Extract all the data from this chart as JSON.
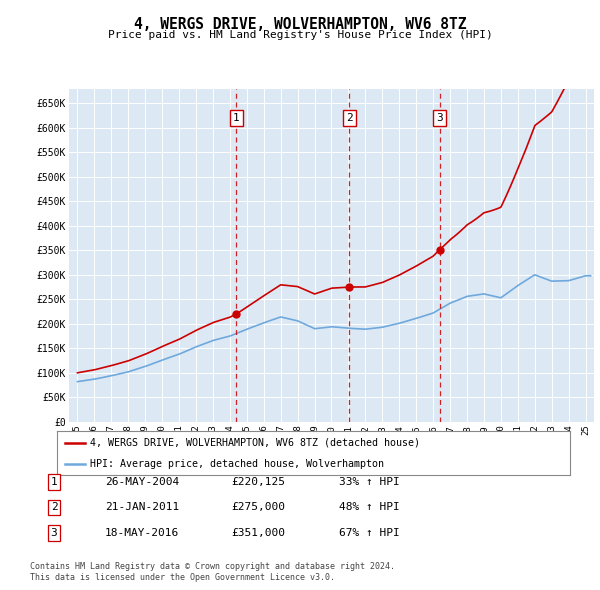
{
  "title": "4, WERGS DRIVE, WOLVERHAMPTON, WV6 8TZ",
  "subtitle": "Price paid vs. HM Land Registry's House Price Index (HPI)",
  "plot_bg_color": "#dce9f5",
  "grid_color": "#ffffff",
  "hpi_color": "#6fa8dc",
  "price_color": "#cc0000",
  "transactions": [
    {
      "num": 1,
      "date": "26-MAY-2004",
      "price": 220125,
      "x": 2004.39,
      "hpi_pct": "33% ↑ HPI"
    },
    {
      "num": 2,
      "date": "21-JAN-2011",
      "price": 275000,
      "x": 2011.05,
      "hpi_pct": "48% ↑ HPI"
    },
    {
      "num": 3,
      "date": "18-MAY-2016",
      "price": 351000,
      "x": 2016.38,
      "hpi_pct": "67% ↑ HPI"
    }
  ],
  "legend_label_price": "4, WERGS DRIVE, WOLVERHAMPTON, WV6 8TZ (detached house)",
  "legend_label_hpi": "HPI: Average price, detached house, Wolverhampton",
  "footnote1": "Contains HM Land Registry data © Crown copyright and database right 2024.",
  "footnote2": "This data is licensed under the Open Government Licence v3.0.",
  "xlim": [
    1994.5,
    2025.5
  ],
  "ylim": [
    0,
    680000
  ],
  "yticks": [
    0,
    50000,
    100000,
    150000,
    200000,
    250000,
    300000,
    350000,
    400000,
    450000,
    500000,
    550000,
    600000,
    650000
  ],
  "ytick_labels": [
    "£0",
    "£50K",
    "£100K",
    "£150K",
    "£200K",
    "£250K",
    "£300K",
    "£350K",
    "£400K",
    "£450K",
    "£500K",
    "£550K",
    "£600K",
    "£650K"
  ],
  "xtick_years": [
    1995,
    1996,
    1997,
    1998,
    1999,
    2000,
    2001,
    2002,
    2003,
    2004,
    2005,
    2006,
    2007,
    2008,
    2009,
    2010,
    2011,
    2012,
    2013,
    2014,
    2015,
    2016,
    2017,
    2018,
    2019,
    2020,
    2021,
    2022,
    2023,
    2024,
    2025
  ],
  "hpi_years": [
    1995,
    1996,
    1997,
    1998,
    1999,
    2000,
    2001,
    2002,
    2003,
    2004,
    2005,
    2006,
    2007,
    2008,
    2009,
    2010,
    2011,
    2012,
    2013,
    2014,
    2015,
    2016,
    2017,
    2018,
    2019,
    2020,
    2021,
    2022,
    2023,
    2024,
    2025
  ],
  "hpi_values": [
    82000,
    87000,
    94000,
    102000,
    113000,
    126000,
    138000,
    153000,
    166000,
    175000,
    189000,
    202000,
    214000,
    206000,
    190000,
    194000,
    191000,
    189000,
    193000,
    201000,
    211000,
    222000,
    242000,
    256000,
    261000,
    253000,
    278000,
    300000,
    287000,
    288000,
    298000
  ]
}
